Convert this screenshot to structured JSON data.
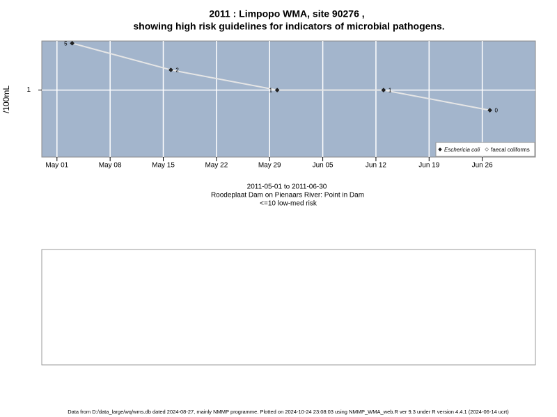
{
  "chart_data": {
    "type": "line",
    "title": [
      "2011 : Limpopo WMA, site 90276 ,",
      "showing high risk guidelines for indicators of microbial pathogens."
    ],
    "y_label": "/100mL",
    "annotations": [
      "2011-05-01 to 2011-06-30",
      "Roodeplaat Dam on Pienaars River: Point in Dam",
      "<=10 low-med risk"
    ],
    "x": [
      "2011-05-03",
      "2011-05-16",
      "2011-05-30",
      "2011-06-13",
      "2011-06-27"
    ],
    "series": [
      {
        "name": "Eschericia coli",
        "color": "#222222",
        "line_color": "#e6e6e6",
        "values": [
          5,
          2,
          1,
          1,
          0.5
        ],
        "value_labels": [
          "5",
          "2",
          "1",
          "1",
          "0"
        ]
      },
      {
        "name": "faecal coliforms",
        "color": "#ffffff",
        "values": [
          null,
          null,
          null,
          null,
          null
        ]
      }
    ],
    "xlim": [
      "2011-04-29",
      "2011-07-03"
    ],
    "xticks": [
      {
        "value": "2011-05-01",
        "label": "May 01"
      },
      {
        "value": "2011-05-08",
        "label": "May 08"
      },
      {
        "value": "2011-05-15",
        "label": "May 15"
      },
      {
        "value": "2011-05-22",
        "label": "May 22"
      },
      {
        "value": "2011-05-29",
        "label": "May 29"
      },
      {
        "value": "2011-06-05",
        "label": "Jun 05"
      },
      {
        "value": "2011-06-12",
        "label": "Jun 12"
      },
      {
        "value": "2011-06-19",
        "label": "Jun 19"
      },
      {
        "value": "2011-06-26",
        "label": "Jun 26"
      }
    ],
    "ylim": [
      0.1,
      5.4
    ],
    "yticks": [
      1
    ],
    "log_y": true,
    "grid": true,
    "legend": "bottom-right",
    "background": "#a3b5cc"
  },
  "footer": "Data from D:/data_large/wq/wms.db dated 2024-08-27, mainly NMMP programme. Plotted on 2024-10-24 23:08:03 using NMMP_WMA_web.R ver 9.3 under R version 4.4.1 (2024-06-14 ucrt)"
}
